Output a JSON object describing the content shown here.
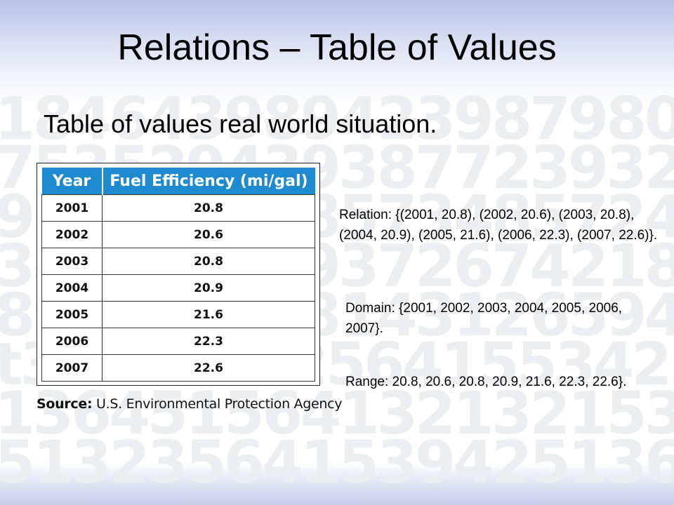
{
  "slide": {
    "title": "Relations – Table of Values",
    "subtitle": "Table of values real world situation.",
    "watermark_rows": [
      "18464398942398798082538",
      "75352943938772393223146",
      "96985294857348572458719",
      "34263528937267421834056",
      "89356729814312659418917",
      "t3256413256415534231253",
      "13645156413213215329420",
      "51323564153942513654514"
    ]
  },
  "table": {
    "headers": [
      "Year",
      "Fuel Efficiency (mi/gal)"
    ],
    "rows": [
      {
        "year": "2001",
        "value": "20.8"
      },
      {
        "year": "2002",
        "value": "20.6"
      },
      {
        "year": "2003",
        "value": "20.8"
      },
      {
        "year": "2004",
        "value": "20.9"
      },
      {
        "year": "2005",
        "value": "21.6"
      },
      {
        "year": "2006",
        "value": "22.3"
      },
      {
        "year": "2007",
        "value": "22.6"
      }
    ],
    "source_label": "Source:",
    "source_text": "U.S. Environmental Protection Agency",
    "header_color": "#1e8bd0"
  },
  "info": {
    "relation": "Relation: {(2001, 20.8), (2002, 20.6), (2003, 20.8), (2004, 20.9), (2005, 21.6), (2006, 22.3), (2007, 22.6)}.",
    "domain": "Domain: {2001, 2002, 2003, 2004, 2005, 2006, 2007}.",
    "range": "Range: 20.8, 20.6, 20.8, 20.9, 21.6, 22.3, 22.6}."
  }
}
